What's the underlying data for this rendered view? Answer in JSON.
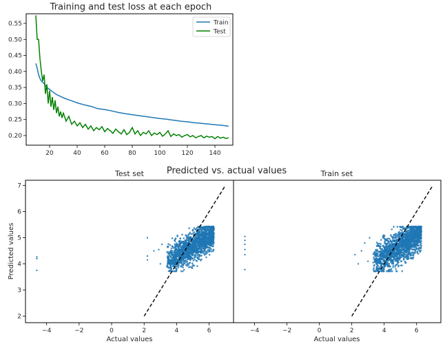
{
  "figure": {
    "suptitle": "Predicted vs. actual values"
  },
  "chart_data": [
    {
      "type": "line",
      "title": "Training and test loss at each epoch",
      "xlabel": "",
      "ylabel": "",
      "xlim": [
        3,
        153
      ],
      "ylim": [
        0.17,
        0.58
      ],
      "xticks": [
        20,
        40,
        60,
        80,
        100,
        120,
        140
      ],
      "yticks": [
        0.2,
        0.25,
        0.3,
        0.35,
        0.4,
        0.45,
        0.5,
        0.55
      ],
      "legend_position": "top-right",
      "grid": false,
      "series": [
        {
          "name": "Train",
          "color": "#1f77b4",
          "x": [
            10,
            11,
            12,
            13,
            14,
            16,
            18,
            20,
            22,
            25,
            28,
            31,
            35,
            40,
            45,
            50,
            55,
            60,
            65,
            70,
            75,
            80,
            85,
            90,
            95,
            100,
            105,
            110,
            115,
            120,
            125,
            130,
            135,
            140,
            145,
            150
          ],
          "y": [
            0.425,
            0.41,
            0.39,
            0.378,
            0.37,
            0.362,
            0.35,
            0.344,
            0.337,
            0.328,
            0.322,
            0.316,
            0.31,
            0.302,
            0.296,
            0.291,
            0.284,
            0.281,
            0.277,
            0.272,
            0.268,
            0.265,
            0.262,
            0.259,
            0.256,
            0.253,
            0.251,
            0.248,
            0.245,
            0.243,
            0.24,
            0.238,
            0.236,
            0.234,
            0.232,
            0.229
          ]
        },
        {
          "name": "Test",
          "color": "#008000",
          "x": [
            10,
            11,
            12,
            13,
            14,
            15,
            16,
            17,
            18,
            19,
            20,
            21,
            22,
            23,
            24,
            25,
            26,
            27,
            28,
            29,
            30,
            32,
            34,
            36,
            38,
            40,
            42,
            44,
            46,
            48,
            50,
            52,
            54,
            56,
            58,
            60,
            62,
            64,
            66,
            68,
            70,
            72,
            74,
            76,
            78,
            80,
            82,
            84,
            86,
            88,
            90,
            92,
            94,
            96,
            98,
            100,
            102,
            104,
            106,
            108,
            110,
            112,
            114,
            116,
            118,
            120,
            122,
            124,
            126,
            128,
            130,
            132,
            134,
            136,
            138,
            140,
            142,
            144,
            146,
            148,
            150
          ],
          "y": [
            0.575,
            0.5,
            0.5,
            0.44,
            0.4,
            0.37,
            0.39,
            0.33,
            0.36,
            0.3,
            0.34,
            0.29,
            0.32,
            0.28,
            0.31,
            0.27,
            0.29,
            0.26,
            0.275,
            0.255,
            0.27,
            0.245,
            0.26,
            0.235,
            0.245,
            0.23,
            0.24,
            0.225,
            0.235,
            0.22,
            0.23,
            0.215,
            0.225,
            0.218,
            0.228,
            0.212,
            0.222,
            0.215,
            0.207,
            0.22,
            0.212,
            0.205,
            0.218,
            0.203,
            0.21,
            0.225,
            0.205,
            0.215,
            0.2,
            0.21,
            0.205,
            0.215,
            0.2,
            0.208,
            0.203,
            0.21,
            0.198,
            0.205,
            0.215,
            0.197,
            0.205,
            0.2,
            0.203,
            0.195,
            0.2,
            0.203,
            0.196,
            0.2,
            0.193,
            0.197,
            0.2,
            0.193,
            0.198,
            0.195,
            0.197,
            0.19,
            0.197,
            0.192,
            0.195,
            0.191,
            0.193
          ]
        }
      ]
    },
    {
      "type": "scatter",
      "title": "Test set",
      "xlabel": "Actual values",
      "ylabel": "Predicted values",
      "xlim": [
        -5.3,
        7.5
      ],
      "ylim": [
        1.75,
        7.2
      ],
      "xticks": [
        -4,
        -2,
        0,
        2,
        4,
        6
      ],
      "yticks": [
        2,
        3,
        4,
        5,
        6,
        7
      ],
      "grid": false,
      "color": "#1f77b4",
      "cluster": {
        "x_range": [
          3.4,
          6.3
        ],
        "y_center_at_x4": 4.3,
        "slope": 0.38,
        "spread": 0.28
      },
      "outliers": [
        [
          -4.6,
          4.27
        ],
        [
          -4.6,
          4.2
        ],
        [
          -4.6,
          3.75
        ],
        [
          2.2,
          5.0
        ],
        [
          2.2,
          4.3
        ],
        [
          2.2,
          4.15
        ],
        [
          2.6,
          4.5
        ],
        [
          2.9,
          4.55
        ],
        [
          3.0,
          4.0
        ],
        [
          3.1,
          4.75
        ]
      ],
      "reference_line": {
        "x": [
          2.0,
          7.0
        ],
        "y": [
          2.0,
          7.0
        ],
        "style": "dashed",
        "color": "#000000"
      }
    },
    {
      "type": "scatter",
      "title": "Train set",
      "xlabel": "Actual values",
      "ylabel": "",
      "xlim": [
        -5.3,
        7.5
      ],
      "ylim": [
        1.75,
        7.2
      ],
      "xticks": [
        -4,
        -2,
        0,
        2,
        4,
        6
      ],
      "yticks": [],
      "grid": false,
      "color": "#1f77b4",
      "cluster": {
        "x_range": [
          3.3,
          6.3
        ],
        "y_center_at_x4": 4.3,
        "slope": 0.38,
        "spread": 0.32
      },
      "outliers": [
        [
          -4.6,
          5.05
        ],
        [
          -4.6,
          4.9
        ],
        [
          -4.6,
          4.75
        ],
        [
          -4.6,
          4.55
        ],
        [
          -4.6,
          4.35
        ],
        [
          -4.6,
          3.78
        ],
        [
          2.2,
          4.35
        ],
        [
          2.4,
          4.0
        ],
        [
          2.6,
          4.5
        ],
        [
          2.8,
          4.8
        ],
        [
          3.0,
          4.1
        ],
        [
          3.1,
          5.0
        ]
      ],
      "reference_line": {
        "x": [
          2.0,
          7.0
        ],
        "y": [
          2.0,
          7.0
        ],
        "style": "dashed",
        "color": "#000000"
      }
    }
  ]
}
